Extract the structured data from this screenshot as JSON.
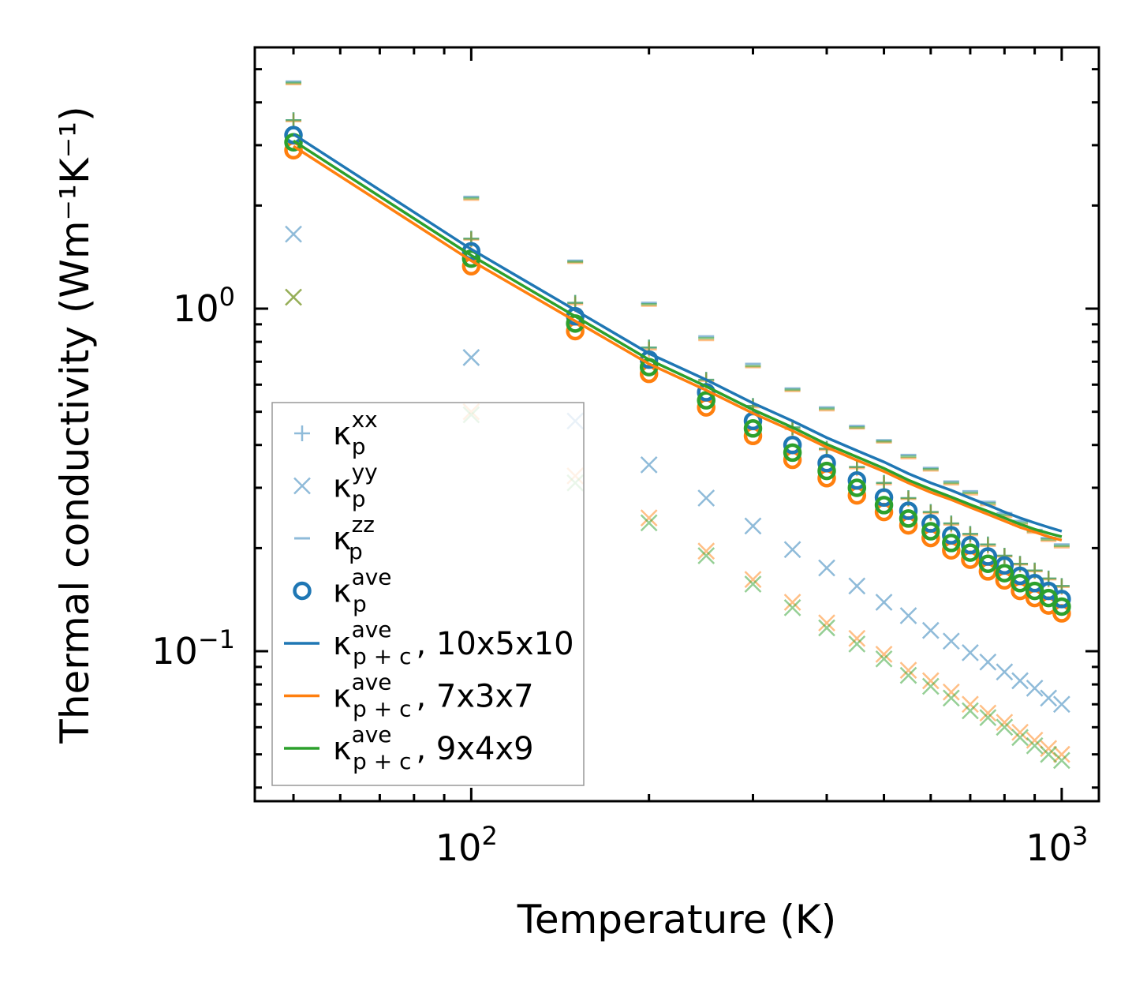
{
  "chart_data": {
    "type": "scatter",
    "xscale": "log",
    "yscale": "log",
    "xlabel": "Temperature (K)",
    "ylabel": "Thermal conductivity (Wm⁻¹K⁻¹)",
    "xlim": [
      43,
      1156
    ],
    "ylim": [
      0.0365,
      5.79
    ],
    "x_ticks": [
      {
        "value": 100,
        "base": "10",
        "exp": "2"
      },
      {
        "value": 1000,
        "base": "10",
        "exp": "3"
      }
    ],
    "y_ticks": [
      {
        "value": 0.1,
        "base": "10",
        "exp": "−1"
      },
      {
        "value": 1,
        "base": "10",
        "exp": "0"
      }
    ],
    "grid": false,
    "legend_position": "lower-left",
    "colors": {
      "blue": "#1f77b4",
      "orange": "#ff7f0e",
      "green": "#2ca02c"
    },
    "x": [
      50,
      100,
      150,
      200,
      250,
      300,
      350,
      400,
      450,
      500,
      550,
      600,
      650,
      700,
      750,
      800,
      850,
      900,
      950,
      1000
    ],
    "series": [
      {
        "name": "kp_xx 10x5x10",
        "marker": "plus",
        "color": "#1f77b4",
        "alpha": 0.5,
        "values": [
          3.55,
          1.6,
          1.04,
          0.77,
          0.62,
          0.52,
          0.45,
          0.39,
          0.345,
          0.31,
          0.28,
          0.255,
          0.236,
          0.22,
          0.205,
          0.19,
          0.18,
          0.172,
          0.163,
          0.155
        ]
      },
      {
        "name": "kp_xx 7x3x7",
        "marker": "plus",
        "color": "#ff7f0e",
        "alpha": 0.5,
        "values": [
          3.52,
          1.59,
          1.03,
          0.76,
          0.615,
          0.515,
          0.445,
          0.387,
          0.342,
          0.307,
          0.278,
          0.253,
          0.234,
          0.218,
          0.203,
          0.189,
          0.179,
          0.171,
          0.162,
          0.154
        ]
      },
      {
        "name": "kp_xx 9x4x9",
        "marker": "plus",
        "color": "#2ca02c",
        "alpha": 0.5,
        "values": [
          3.55,
          1.6,
          1.04,
          0.77,
          0.62,
          0.52,
          0.45,
          0.39,
          0.345,
          0.31,
          0.28,
          0.255,
          0.236,
          0.22,
          0.205,
          0.19,
          0.18,
          0.172,
          0.163,
          0.155
        ]
      },
      {
        "name": "kp_yy 10x5x10",
        "marker": "x",
        "color": "#1f77b4",
        "alpha": 0.5,
        "values": [
          1.65,
          0.72,
          0.47,
          0.35,
          0.28,
          0.232,
          0.198,
          0.175,
          0.155,
          0.139,
          0.127,
          0.115,
          0.107,
          0.099,
          0.093,
          0.087,
          0.082,
          0.078,
          0.073,
          0.07
        ]
      },
      {
        "name": "kp_yy 7x3x7",
        "marker": "x",
        "color": "#ff7f0e",
        "alpha": 0.5,
        "values": [
          1.08,
          0.5,
          0.325,
          0.245,
          0.196,
          0.162,
          0.139,
          0.121,
          0.109,
          0.098,
          0.088,
          0.082,
          0.076,
          0.07,
          0.066,
          0.062,
          0.058,
          0.055,
          0.052,
          0.05
        ]
      },
      {
        "name": "kp_yy 9x4x9",
        "marker": "x",
        "color": "#2ca02c",
        "alpha": 0.5,
        "values": [
          1.08,
          0.49,
          0.31,
          0.237,
          0.19,
          0.157,
          0.134,
          0.117,
          0.105,
          0.095,
          0.085,
          0.079,
          0.073,
          0.067,
          0.064,
          0.06,
          0.056,
          0.053,
          0.05,
          0.048
        ]
      },
      {
        "name": "kp_zz 10x5x10",
        "marker": "dash",
        "color": "#1f77b4",
        "alpha": 0.5,
        "values": [
          4.6,
          2.12,
          1.38,
          1.04,
          0.83,
          0.69,
          0.585,
          0.515,
          0.455,
          0.413,
          0.374,
          0.343,
          0.313,
          0.293,
          0.273,
          0.253,
          0.24,
          0.226,
          0.214,
          0.205
        ]
      },
      {
        "name": "kp_zz 7x3x7",
        "marker": "dash",
        "color": "#ff7f0e",
        "alpha": 0.5,
        "values": [
          4.52,
          2.08,
          1.36,
          1.02,
          0.81,
          0.675,
          0.575,
          0.505,
          0.447,
          0.407,
          0.366,
          0.337,
          0.307,
          0.287,
          0.267,
          0.247,
          0.234,
          0.222,
          0.21,
          0.201
        ]
      },
      {
        "name": "kp_zz 9x4x9",
        "marker": "dash",
        "color": "#2ca02c",
        "alpha": 0.5,
        "values": [
          4.56,
          2.1,
          1.37,
          1.03,
          0.82,
          0.68,
          0.58,
          0.51,
          0.45,
          0.41,
          0.37,
          0.34,
          0.31,
          0.29,
          0.27,
          0.25,
          0.237,
          0.224,
          0.212,
          0.203
        ]
      },
      {
        "name": "kp_ave 7x3x7",
        "marker": "circle",
        "color": "#ff7f0e",
        "alpha": 1,
        "values": [
          2.9,
          1.33,
          0.86,
          0.645,
          0.515,
          0.425,
          0.362,
          0.32,
          0.285,
          0.255,
          0.233,
          0.214,
          0.197,
          0.185,
          0.171,
          0.161,
          0.15,
          0.143,
          0.136,
          0.129
        ]
      },
      {
        "name": "kp_ave 10x5x10",
        "marker": "circle",
        "color": "#1f77b4",
        "alpha": 1,
        "values": [
          3.21,
          1.47,
          0.95,
          0.71,
          0.57,
          0.47,
          0.4,
          0.354,
          0.315,
          0.281,
          0.257,
          0.236,
          0.218,
          0.204,
          0.189,
          0.178,
          0.166,
          0.158,
          0.15,
          0.142
        ]
      },
      {
        "name": "kp_ave 9x4x9",
        "marker": "circle",
        "color": "#2ca02c",
        "alpha": 1,
        "values": [
          3.06,
          1.4,
          0.905,
          0.675,
          0.54,
          0.447,
          0.38,
          0.336,
          0.3,
          0.267,
          0.244,
          0.224,
          0.207,
          0.194,
          0.18,
          0.169,
          0.158,
          0.15,
          0.143,
          0.135
        ]
      },
      {
        "name": "kp+c_ave 10x5x10",
        "marker": "line",
        "color": "#1f77b4",
        "alpha": 1,
        "values": [
          3.23,
          1.49,
          0.99,
          0.74,
          0.62,
          0.53,
          0.47,
          0.42,
          0.385,
          0.357,
          0.33,
          0.31,
          0.295,
          0.28,
          0.267,
          0.255,
          0.245,
          0.237,
          0.23,
          0.224
        ]
      },
      {
        "name": "kp+c_ave 7x3x7",
        "marker": "line",
        "color": "#ff7f0e",
        "alpha": 1,
        "values": [
          2.98,
          1.38,
          0.92,
          0.69,
          0.578,
          0.495,
          0.44,
          0.394,
          0.361,
          0.335,
          0.31,
          0.291,
          0.277,
          0.263,
          0.251,
          0.24,
          0.23,
          0.223,
          0.216,
          0.211
        ]
      },
      {
        "name": "kp+c_ave 9x4x9",
        "marker": "line",
        "color": "#2ca02c",
        "alpha": 1,
        "values": [
          3.09,
          1.43,
          0.95,
          0.71,
          0.593,
          0.507,
          0.45,
          0.402,
          0.369,
          0.342,
          0.316,
          0.297,
          0.282,
          0.268,
          0.256,
          0.245,
          0.235,
          0.227,
          0.221,
          0.216
        ]
      }
    ],
    "legend": [
      {
        "marker": "plus",
        "color": "#1f77b4",
        "alpha": 0.5,
        "base": "κ",
        "sup": "xx",
        "sub": "p",
        "suffix": ""
      },
      {
        "marker": "x",
        "color": "#1f77b4",
        "alpha": 0.5,
        "base": "κ",
        "sup": "yy",
        "sub": "p",
        "suffix": ""
      },
      {
        "marker": "dash",
        "color": "#1f77b4",
        "alpha": 0.5,
        "base": "κ",
        "sup": "zz",
        "sub": "p",
        "suffix": ""
      },
      {
        "marker": "circle",
        "color": "#1f77b4",
        "alpha": 1,
        "base": "κ",
        "sup": "ave",
        "sub": "p",
        "suffix": ""
      },
      {
        "marker": "line",
        "color": "#1f77b4",
        "alpha": 1,
        "base": "κ",
        "sup": "ave",
        "sub": "p + c",
        "suffix": ", 10x5x10"
      },
      {
        "marker": "line",
        "color": "#ff7f0e",
        "alpha": 1,
        "base": "κ",
        "sup": "ave",
        "sub": "p + c",
        "suffix": ", 7x3x7"
      },
      {
        "marker": "line",
        "color": "#2ca02c",
        "alpha": 1,
        "base": "κ",
        "sup": "ave",
        "sub": "p + c",
        "suffix": ", 9x4x9"
      }
    ]
  }
}
